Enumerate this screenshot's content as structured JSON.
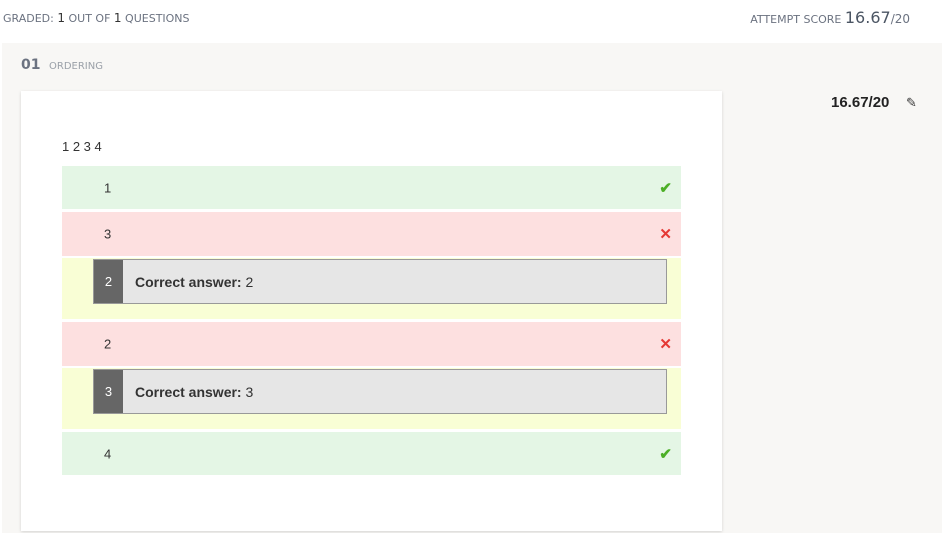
{
  "header": {
    "graded_label": "GRADED:",
    "graded_count": "1",
    "out_of": "OUT OF",
    "total": "1",
    "questions": "QUESTIONS",
    "attempt_label": "ATTEMPT SCORE",
    "attempt_score": "16.67",
    "attempt_max": "/20"
  },
  "question": {
    "number": "01",
    "type": "ORDERING",
    "score": "16.67/20",
    "edit_icon": "pencil-icon",
    "prompt": "1 2 3 4",
    "rows": [
      {
        "value": "1",
        "status": "correct"
      },
      {
        "value": "3",
        "status": "incorrect",
        "correct_index": "2",
        "correct_label": "Correct answer:",
        "correct_value": "2"
      },
      {
        "value": "2",
        "status": "incorrect",
        "correct_index": "3",
        "correct_label": "Correct answer:",
        "correct_value": "3"
      },
      {
        "value": "4",
        "status": "correct"
      }
    ]
  },
  "colors": {
    "correct_bg": "#e4f6e5",
    "incorrect_bg": "#fde0e0",
    "hint_bg": "#f9fed5",
    "check": "#4caf26",
    "cross": "#e53935"
  }
}
